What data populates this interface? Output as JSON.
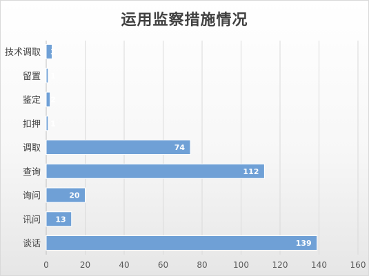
{
  "chart_data": {
    "type": "bar",
    "orientation": "horizontal",
    "title": "运用监察措施情况",
    "categories": [
      "技术调取",
      "留置",
      "鉴定",
      "扣押",
      "调取",
      "查询",
      "询问",
      "讯问",
      "谈话"
    ],
    "values": [
      3,
      1,
      2,
      1,
      74,
      112,
      20,
      13,
      139
    ],
    "xlim": [
      0,
      160
    ],
    "xticks": [
      "0",
      "20",
      "40",
      "60",
      "80",
      "100",
      "120",
      "140",
      "160"
    ],
    "grid": true,
    "legend": "none",
    "bar_color": "#6fa0d6",
    "bar_edge_color": "#ffffff",
    "label_color": "#ffffff"
  }
}
